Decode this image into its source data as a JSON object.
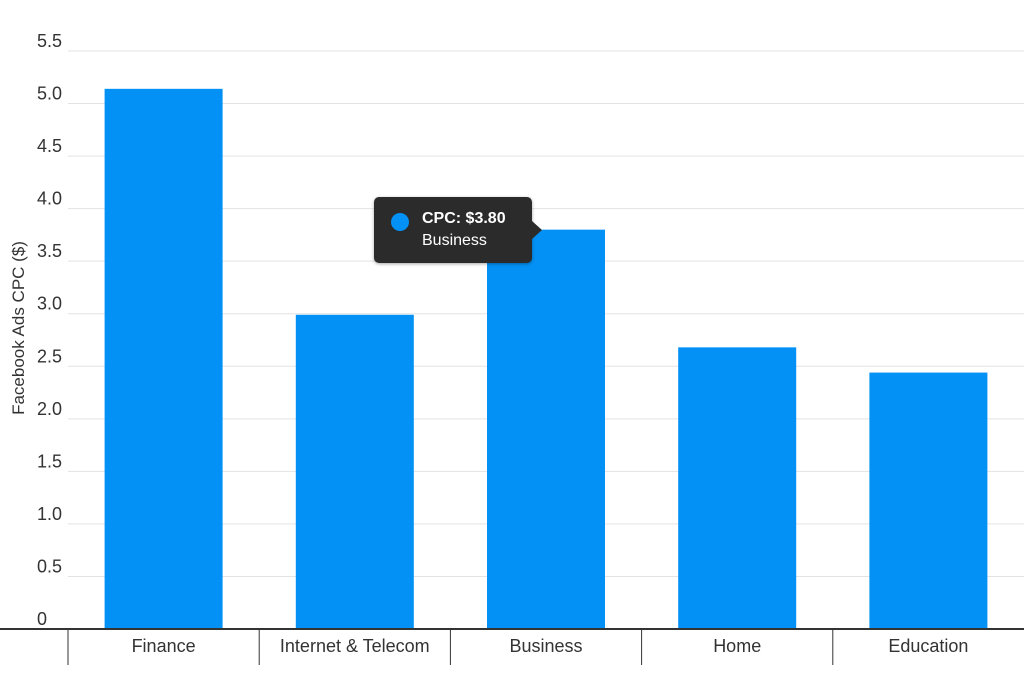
{
  "colors": {
    "bar": "#0391f5",
    "grid": "#e3e3e3",
    "axis": "#333333",
    "tooltip_bg": "#2b2b2b"
  },
  "chart_data": {
    "type": "bar",
    "categories": [
      "Finance",
      "Internet & Telecom",
      "Business",
      "Home",
      "Education"
    ],
    "values": [
      5.14,
      2.99,
      3.8,
      2.68,
      2.44
    ],
    "ylabel": "Facebook Ads CPC ($)",
    "xlabel": "",
    "ylim": [
      0,
      5.5
    ],
    "yticks": [
      "0",
      "0.5",
      "1.0",
      "1.5",
      "2.0",
      "2.5",
      "3.0",
      "3.5",
      "4.0",
      "4.5",
      "5.0",
      "5.5"
    ],
    "grid": true,
    "legend": "none"
  },
  "tooltip": {
    "title": "CPC: $3.80",
    "subtitle": "Business"
  }
}
